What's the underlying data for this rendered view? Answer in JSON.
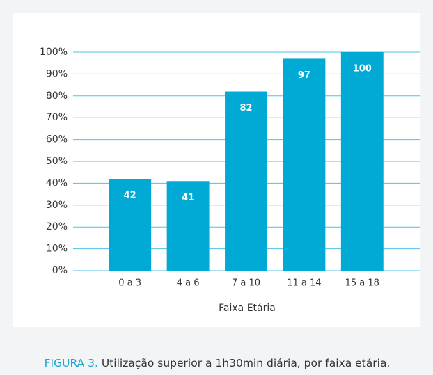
{
  "chart_data": {
    "type": "bar",
    "x_label": "Faixa Etária",
    "caption_label": "FIGURA 3.",
    "caption": "Utilização superior a 1h30min diária, por faixa etária.",
    "categories": [
      "0 a 3",
      "4 a 6",
      "7 a 10",
      "11 a 14",
      "15 a 18"
    ],
    "values": [
      42,
      41,
      82,
      97,
      100
    ],
    "color": "#00aad4",
    "ylim": [
      0,
      100
    ],
    "yticks": [
      {
        "value": 0,
        "label": "0%"
      },
      {
        "value": 10,
        "label": "10%"
      },
      {
        "value": 20,
        "label": "20%"
      },
      {
        "value": 30,
        "label": "30%"
      },
      {
        "value": 40,
        "label": "40%"
      },
      {
        "value": 50,
        "label": "50%"
      },
      {
        "value": 60,
        "label": "60%"
      },
      {
        "value": 70,
        "label": "70%"
      },
      {
        "value": 80,
        "label": "80%"
      },
      {
        "value": 90,
        "label": "90%"
      },
      {
        "value": 100,
        "label": "100%"
      }
    ],
    "grid": true
  }
}
